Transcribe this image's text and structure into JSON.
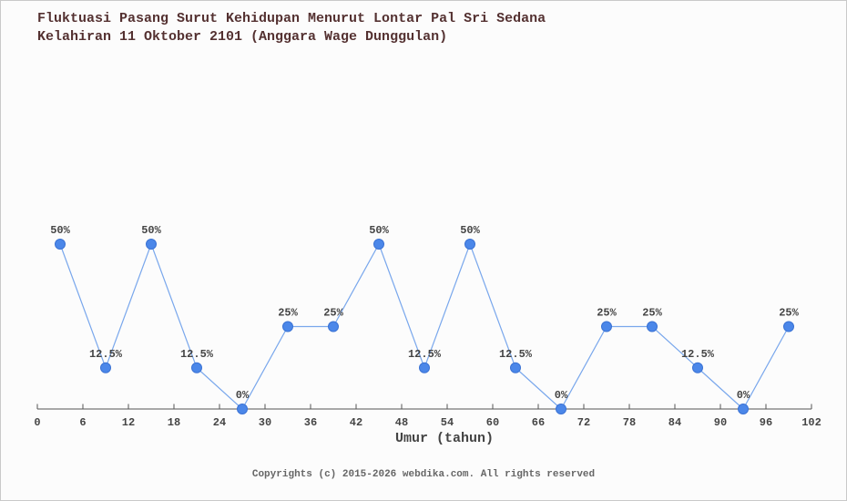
{
  "page": {
    "title_line1": "Fluktuasi Pasang Surut Kehidupan Menurut Lontar Pal Sri Sedana",
    "title_line2": "Kelahiran 11 Oktober 2101 (Anggara Wage Dunggulan)",
    "footer": "Copyrights (c) 2015-2026 webdika.com. All rights reserved"
  },
  "chart_data": {
    "type": "line",
    "title": "Fluktuasi Pasang Surut Kehidupan Menurut Lontar Pal Sri Sedana",
    "subtitle": "Kelahiran 11 Oktober 2101 (Anggara Wage Dunggulan)",
    "xlabel": "Umur (tahun)",
    "ylabel": "",
    "x": [
      3,
      9,
      15,
      21,
      27,
      33,
      39,
      45,
      51,
      57,
      63,
      69,
      75,
      81,
      87,
      93,
      99
    ],
    "values": [
      50,
      12.5,
      50,
      12.5,
      0,
      25,
      25,
      50,
      12.5,
      50,
      12.5,
      0,
      25,
      25,
      12.5,
      0,
      25
    ],
    "point_labels": [
      "50%",
      "12.5%",
      "50%",
      "12.5%",
      "0%",
      "25%",
      "25%",
      "50%",
      "12.5%",
      "50%",
      "12.5%",
      "0%",
      "25%",
      "25%",
      "12.5%",
      "0%",
      "25%"
    ],
    "x_ticks": [
      0,
      6,
      12,
      18,
      24,
      30,
      36,
      42,
      48,
      54,
      60,
      66,
      72,
      78,
      84,
      90,
      96,
      102
    ],
    "xlim": [
      0,
      102
    ],
    "ylim": [
      0,
      100
    ],
    "grid": false,
    "legend": "none",
    "colors": {
      "marker": "#4b87e9",
      "marker_border": "#3a72d4",
      "line": "#79a7ec",
      "title": "#543131",
      "label": "#444444",
      "axis": "#555555",
      "footer": "#666666",
      "background": "#fcfcfc"
    }
  }
}
